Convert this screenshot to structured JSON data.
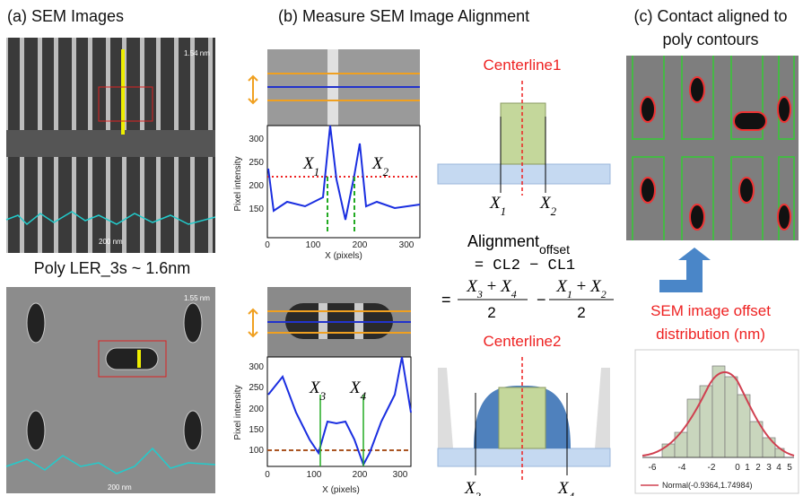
{
  "panel_a": {
    "label": "(a) SEM Images",
    "subtitle": "Poly LER_3s ~ 1.6nm",
    "image1": {
      "scale": "1.54 nm",
      "bar": "200 nm"
    },
    "image2": {
      "scale": "1.55 nm",
      "bar": "200 nm"
    }
  },
  "panel_b": {
    "label": "(b) Measure SEM Image Alignment",
    "plot1": {
      "ylabel": "Pixel intensity",
      "xlabel": "X (pixels)",
      "yticks": [
        "300",
        "250",
        "200",
        "150"
      ],
      "xticks": [
        "0",
        "100",
        "200",
        "300"
      ],
      "markers": [
        {
          "main": "X",
          "sub": "1"
        },
        {
          "main": "X",
          "sub": "2"
        }
      ]
    },
    "plot2": {
      "ylabel": "Pixel intensity",
      "xlabel": "X (pixels)",
      "yticks": [
        "300",
        "250",
        "200",
        "150",
        "100"
      ],
      "xticks": [
        "0",
        "100",
        "200",
        "300"
      ],
      "markers": [
        {
          "main": "X",
          "sub": "3"
        },
        {
          "main": "X",
          "sub": "4"
        }
      ]
    },
    "diagram1": {
      "title": "Centerline1",
      "labels": [
        {
          "main": "X",
          "sub": "1"
        },
        {
          "main": "X",
          "sub": "2"
        }
      ]
    },
    "diagram2": {
      "title": "Centerline2",
      "labels": [
        {
          "main": "X",
          "sub": "3"
        },
        {
          "main": "X",
          "sub": "4"
        }
      ]
    },
    "formula": {
      "label": "Alignment",
      "label_sub": "offset",
      "line1": "= CL2 − CL1",
      "equals": "=",
      "minus": "−",
      "frac1": {
        "num": [
          "X",
          "3",
          " + ",
          "X",
          "4"
        ],
        "den": "2"
      },
      "frac2": {
        "num": [
          "X",
          "1",
          " + ",
          "X",
          "2"
        ],
        "den": "2"
      }
    }
  },
  "panel_c": {
    "label_line1": "(c) Contact aligned to",
    "label_line2": "poly contours",
    "hist_title_line1": "SEM image offset",
    "hist_title_line2": "distribution (nm)",
    "xticks": [
      "-6",
      "-4",
      "-2",
      "0",
      "1",
      "2",
      "3",
      "4",
      "5"
    ],
    "legend": "Normal(-0.9364,1.74984)"
  }
}
